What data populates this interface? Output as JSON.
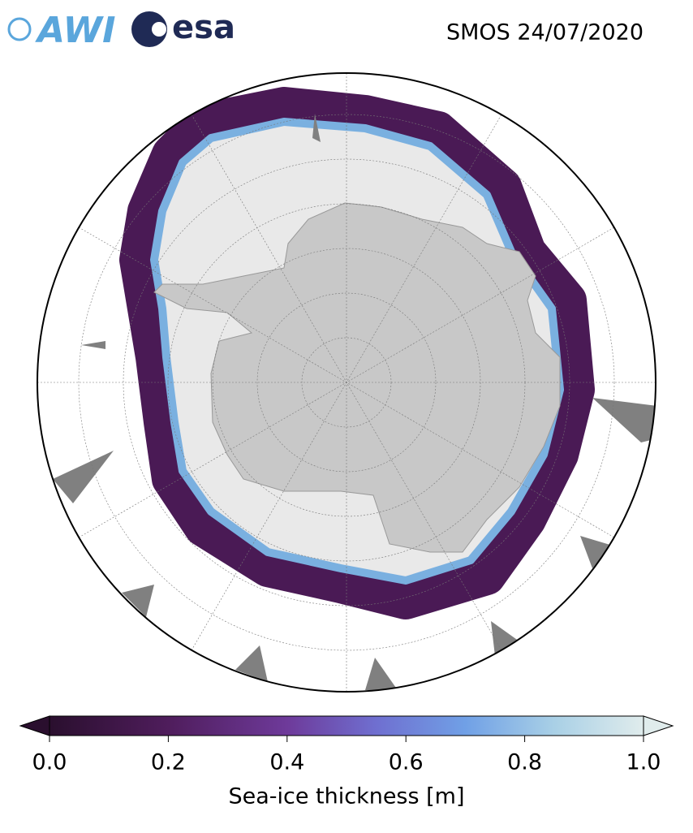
{
  "header": {
    "logos": [
      "AWI",
      "esa"
    ],
    "title": "SMOS 24/07/2020"
  },
  "colorbar": {
    "label": "Sea-ice thickness [m]",
    "clim": [
      0,
      1
    ],
    "ticks": [
      {
        "value": 0,
        "label": "0.0"
      },
      0.2,
      0.4,
      0.6,
      0.8,
      {
        "value": 1,
        "label": "1.0"
      }
    ]
  }
}
